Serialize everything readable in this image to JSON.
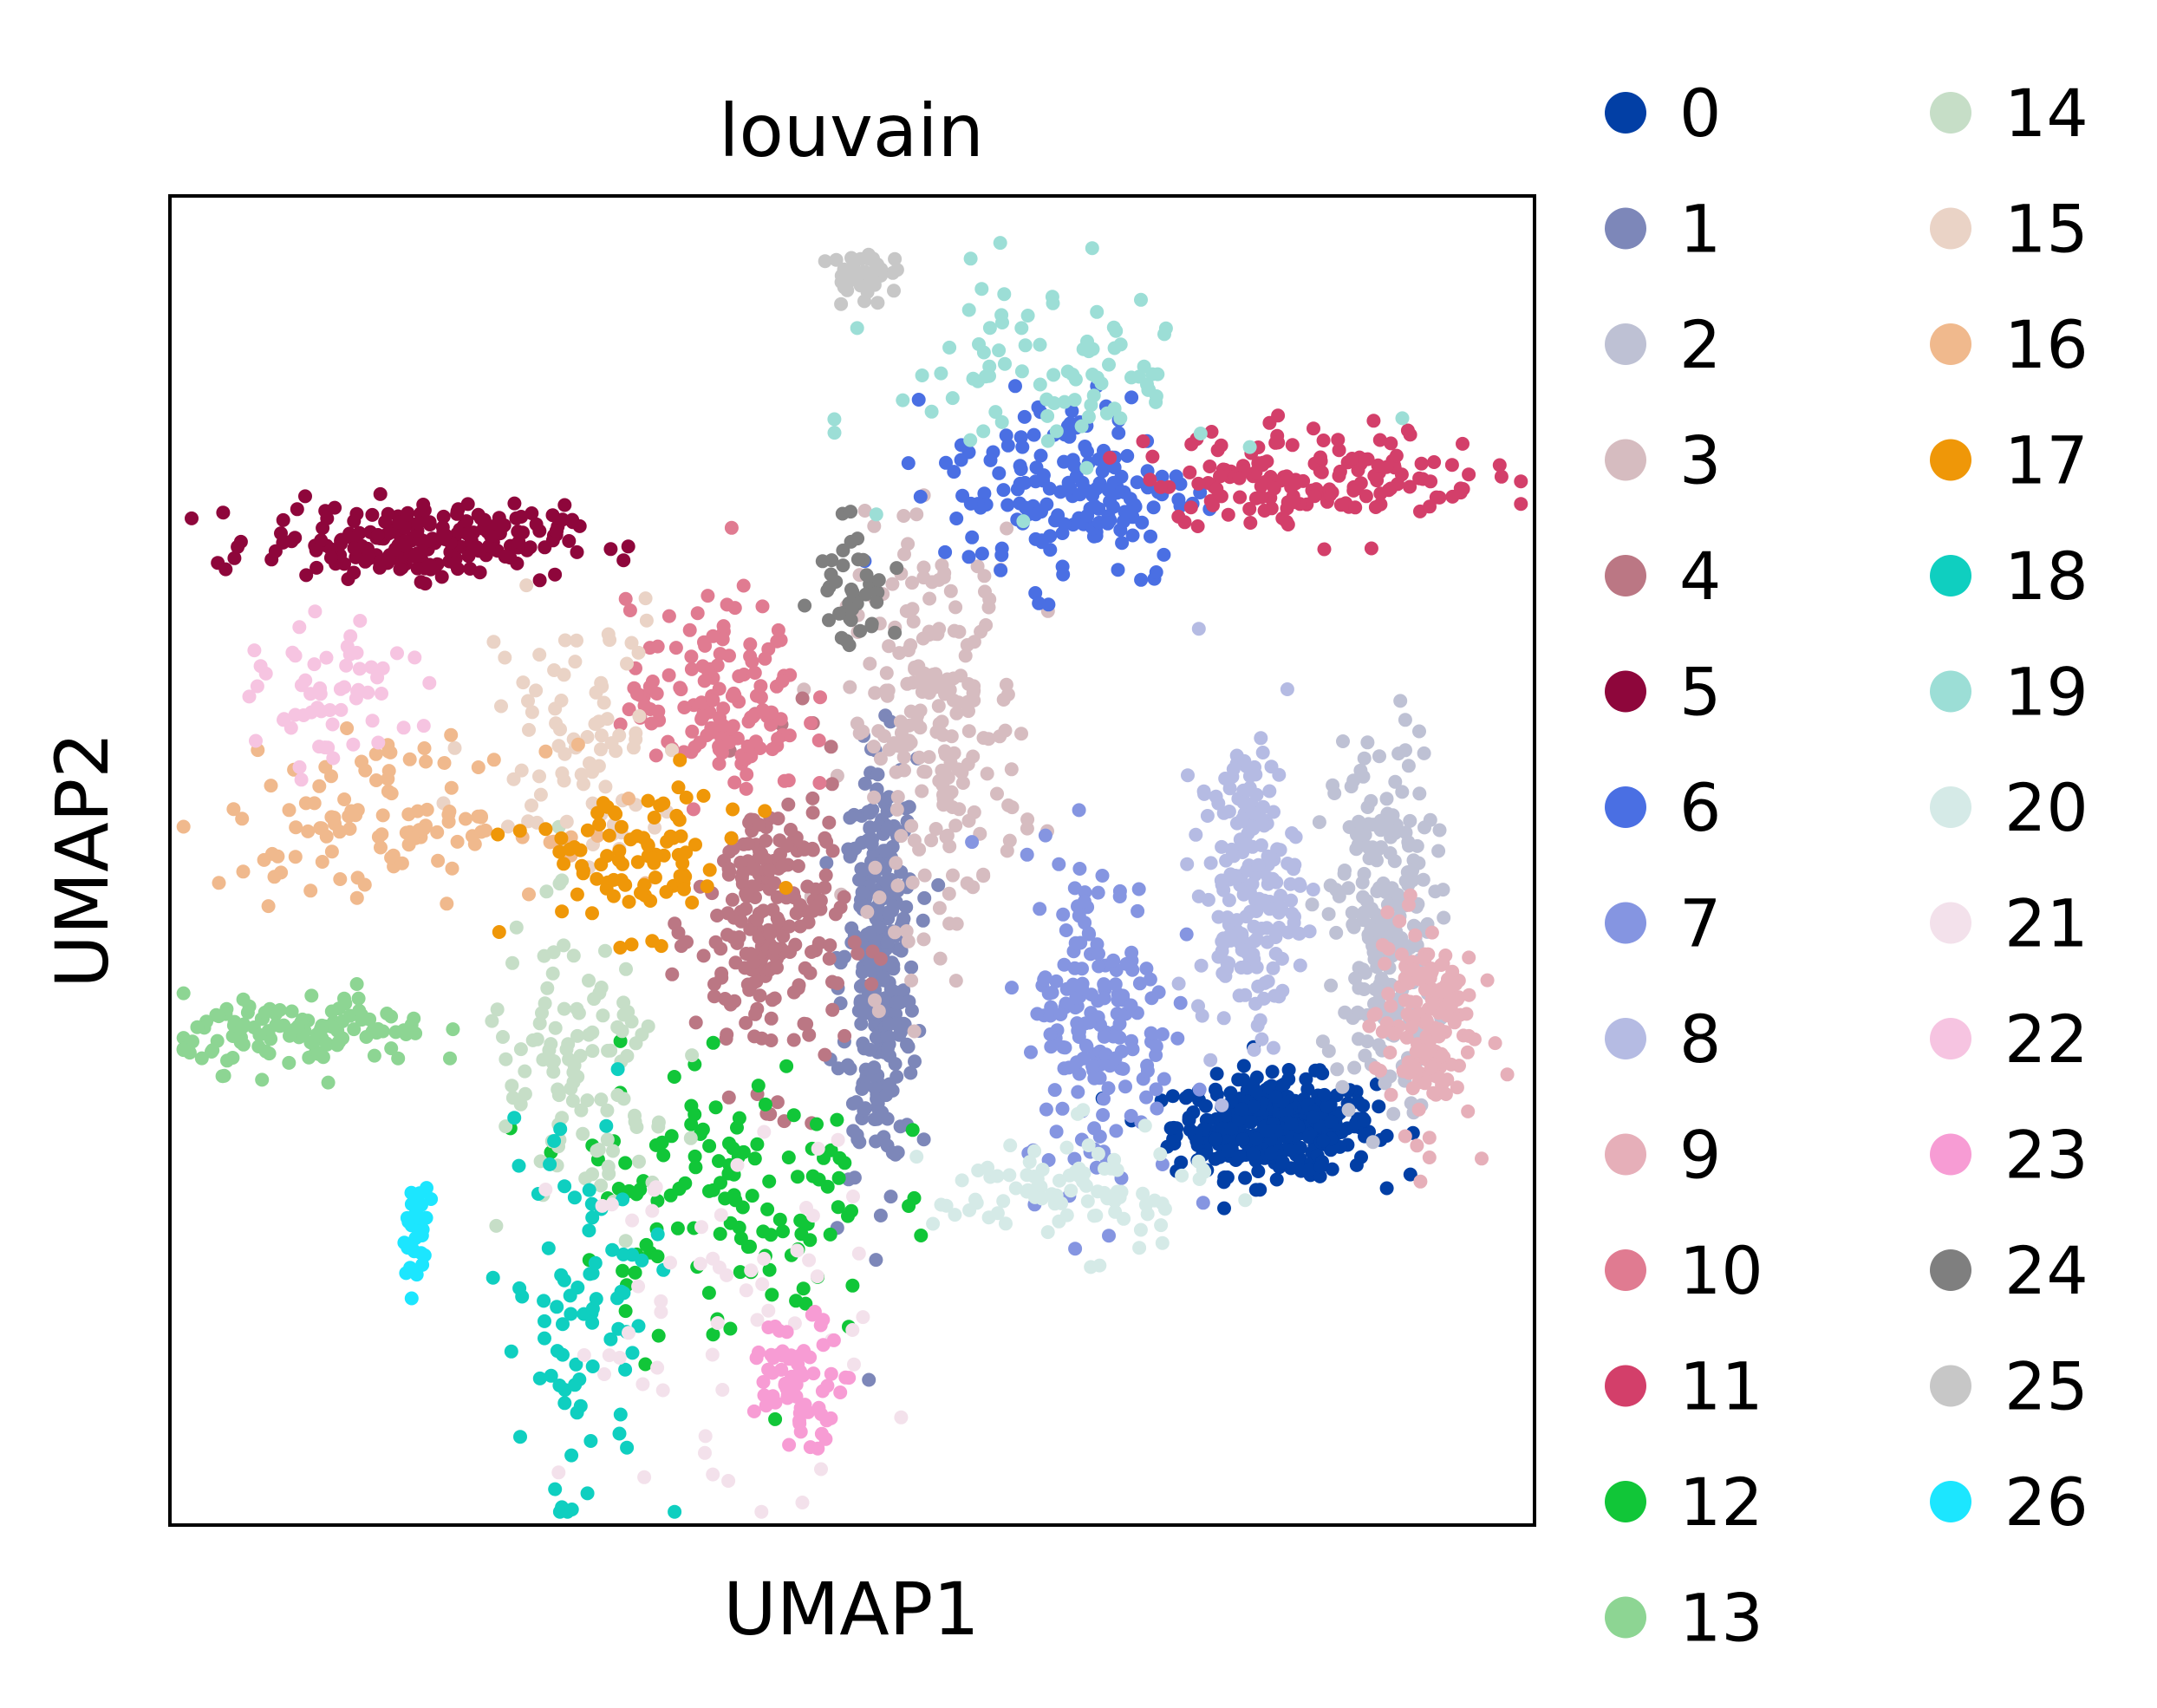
{
  "chart_data": {
    "type": "scatter",
    "title": "louvain",
    "xlabel": "UMAP1",
    "ylabel": "UMAP2",
    "xlim": [
      0,
      100
    ],
    "ylim": [
      0,
      100
    ],
    "grid": false,
    "legend_position": "right",
    "clusters": [
      {
        "name": "0",
        "color": "#023fa5",
        "center": [
          81,
          30
        ],
        "spread": [
          8,
          4
        ],
        "n": 380
      },
      {
        "name": "1",
        "color": "#7d87b9",
        "center": [
          52,
          42
        ],
        "spread": [
          3,
          17
        ],
        "n": 300
      },
      {
        "name": "2",
        "color": "#bec1d4",
        "center": [
          89,
          45
        ],
        "spread": [
          4,
          16
        ],
        "n": 240
      },
      {
        "name": "3",
        "color": "#d6bcc0",
        "center": [
          56,
          60
        ],
        "spread": [
          7,
          16
        ],
        "n": 220
      },
      {
        "name": "4",
        "color": "#bb7784",
        "center": [
          44,
          45
        ],
        "spread": [
          6,
          13
        ],
        "n": 220
      },
      {
        "name": "5",
        "color": "#8e063b",
        "center": [
          18,
          74
        ],
        "spread": [
          12,
          3
        ],
        "n": 220
      },
      {
        "name": "6",
        "color": "#4a6fe3",
        "center": [
          66,
          78
        ],
        "spread": [
          10,
          8
        ],
        "n": 170
      },
      {
        "name": "7",
        "color": "#8595e1",
        "center": [
          68,
          38
        ],
        "spread": [
          6,
          14
        ],
        "n": 180
      },
      {
        "name": "8",
        "color": "#b5bbe3",
        "center": [
          79,
          48
        ],
        "spread": [
          4,
          12
        ],
        "n": 190
      },
      {
        "name": "9",
        "color": "#e6afb9",
        "center": [
          92,
          38
        ],
        "spread": [
          4,
          9
        ],
        "n": 150
      },
      {
        "name": "10",
        "color": "#e07b91",
        "center": [
          40,
          62
        ],
        "spread": [
          7,
          8
        ],
        "n": 140
      },
      {
        "name": "11",
        "color": "#d33f6a",
        "center": [
          84,
          79
        ],
        "spread": [
          14,
          4
        ],
        "n": 160
      },
      {
        "name": "12",
        "color": "#11c638",
        "center": [
          41,
          25
        ],
        "spread": [
          12,
          12
        ],
        "n": 130
      },
      {
        "name": "13",
        "color": "#8dd593",
        "center": [
          10,
          37
        ],
        "spread": [
          10,
          3
        ],
        "n": 120
      },
      {
        "name": "14",
        "color": "#c6dec7",
        "center": [
          30,
          33
        ],
        "spread": [
          8,
          13
        ],
        "n": 110
      },
      {
        "name": "15",
        "color": "#ead3c6",
        "center": [
          30,
          60
        ],
        "spread": [
          8,
          11
        ],
        "n": 80
      },
      {
        "name": "16",
        "color": "#f0b98d",
        "center": [
          16,
          53
        ],
        "spread": [
          13,
          6
        ],
        "n": 110
      },
      {
        "name": "17",
        "color": "#ef9708",
        "center": [
          34,
          50
        ],
        "spread": [
          9,
          6
        ],
        "n": 90
      },
      {
        "name": "18",
        "color": "#0fcfc0",
        "center": [
          30,
          15
        ],
        "spread": [
          6,
          18
        ],
        "n": 80
      },
      {
        "name": "19",
        "color": "#9cded6",
        "center": [
          65,
          87
        ],
        "spread": [
          13,
          9
        ],
        "n": 90
      },
      {
        "name": "20",
        "color": "#d5eae7",
        "center": [
          66,
          25
        ],
        "spread": [
          11,
          5
        ],
        "n": 90
      },
      {
        "name": "21",
        "color": "#f3e1eb",
        "center": [
          40,
          16
        ],
        "spread": [
          13,
          15
        ],
        "n": 60
      },
      {
        "name": "22",
        "color": "#f6c4e1",
        "center": [
          12,
          62
        ],
        "spread": [
          6,
          6
        ],
        "n": 60
      },
      {
        "name": "23",
        "color": "#f79cd4",
        "center": [
          46,
          11
        ],
        "spread": [
          4,
          5
        ],
        "n": 70
      },
      {
        "name": "24",
        "color": "#7f7f7f",
        "center": [
          50,
          71
        ],
        "spread": [
          3,
          6
        ],
        "n": 40
      },
      {
        "name": "25",
        "color": "#c7c7c7",
        "center": [
          51,
          94
        ],
        "spread": [
          3,
          2
        ],
        "n": 40
      },
      {
        "name": "26",
        "color": "#1ce6ff",
        "center": [
          18,
          22
        ],
        "spread": [
          1,
          4
        ],
        "n": 30
      }
    ]
  }
}
